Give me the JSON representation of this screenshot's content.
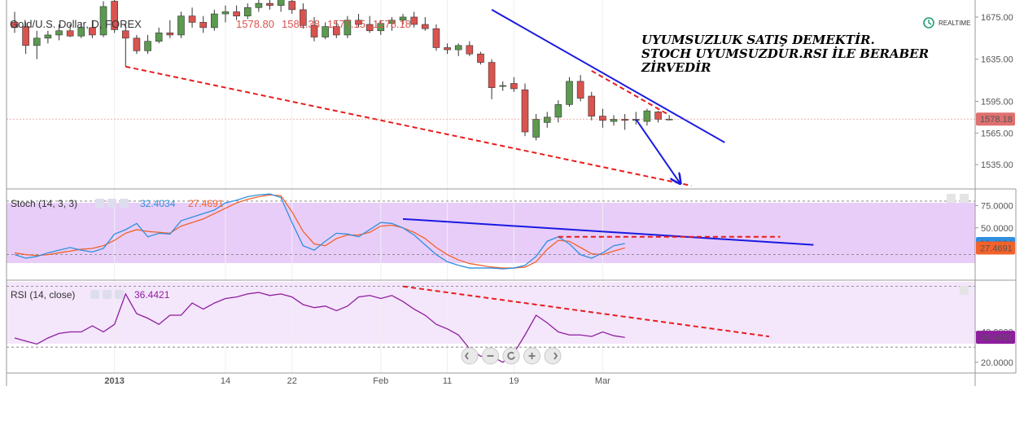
{
  "header": {
    "symbol": "Gold/U.S. Dollar, D, FOREX",
    "ohlc_text": [
      "1578.80",
      "1582.38",
      "1577.15",
      "1578.18"
    ],
    "realtime_label": "REALTIME",
    "realtime_icon": "clock-icon"
  },
  "annotation": {
    "lines": [
      "UYUMSUZLUK SATIŞ DEMEKTİR.",
      "STOCH UYUMSUZDUR.RSI İLE BERABER",
      "ZİRVEDİR"
    ]
  },
  "colors": {
    "up": "#5b9a4f",
    "down": "#d9534f",
    "stoch_k": "#2f8fe0",
    "stoch_d": "#f2622a",
    "rsi": "#8e1e9e",
    "trend_blue": "#1a1ae0",
    "trend_red": "#e81c1c",
    "stoch_band": "#e8cdf8",
    "rsi_band": "#f4e6fb"
  },
  "chart_data": [
    {
      "type": "candlestick",
      "name": "price",
      "title": "Gold/U.S. Dollar, D, FOREX",
      "ylim": [
        1515,
        1685
      ],
      "yticks": [
        "1675.00",
        "1635.00",
        "1595.00",
        "1565.00",
        "1535.00"
      ],
      "last_value": "1578.18",
      "x_labels": [
        {
          "i": 9,
          "label": "2013"
        },
        {
          "i": 19,
          "label": "14"
        },
        {
          "i": 25,
          "label": "22"
        },
        {
          "i": 33,
          "label": "Feb"
        },
        {
          "i": 39,
          "label": "11"
        },
        {
          "i": 45,
          "label": "19"
        },
        {
          "i": 53,
          "label": "Mar"
        }
      ],
      "candles": [
        {
          "o": 1670,
          "h": 1680,
          "l": 1660,
          "c": 1665
        },
        {
          "o": 1666,
          "h": 1670,
          "l": 1640,
          "c": 1648
        },
        {
          "o": 1648,
          "h": 1662,
          "l": 1635,
          "c": 1655
        },
        {
          "o": 1655,
          "h": 1662,
          "l": 1650,
          "c": 1658
        },
        {
          "o": 1658,
          "h": 1668,
          "l": 1653,
          "c": 1662
        },
        {
          "o": 1662,
          "h": 1668,
          "l": 1656,
          "c": 1657
        },
        {
          "o": 1657,
          "h": 1670,
          "l": 1655,
          "c": 1665
        },
        {
          "o": 1665,
          "h": 1672,
          "l": 1655,
          "c": 1658
        },
        {
          "o": 1658,
          "h": 1690,
          "l": 1656,
          "c": 1685
        },
        {
          "o": 1690,
          "h": 1693,
          "l": 1660,
          "c": 1663
        },
        {
          "o": 1662,
          "h": 1668,
          "l": 1628,
          "c": 1655
        },
        {
          "o": 1655,
          "h": 1658,
          "l": 1640,
          "c": 1643
        },
        {
          "o": 1643,
          "h": 1658,
          "l": 1640,
          "c": 1652
        },
        {
          "o": 1652,
          "h": 1665,
          "l": 1650,
          "c": 1660
        },
        {
          "o": 1660,
          "h": 1672,
          "l": 1655,
          "c": 1658
        },
        {
          "o": 1658,
          "h": 1680,
          "l": 1655,
          "c": 1676
        },
        {
          "o": 1676,
          "h": 1684,
          "l": 1665,
          "c": 1670
        },
        {
          "o": 1670,
          "h": 1676,
          "l": 1660,
          "c": 1665
        },
        {
          "o": 1665,
          "h": 1682,
          "l": 1662,
          "c": 1678
        },
        {
          "o": 1678,
          "h": 1686,
          "l": 1670,
          "c": 1680
        },
        {
          "o": 1680,
          "h": 1686,
          "l": 1672,
          "c": 1676
        },
        {
          "o": 1676,
          "h": 1688,
          "l": 1673,
          "c": 1684
        },
        {
          "o": 1684,
          "h": 1692,
          "l": 1680,
          "c": 1688
        },
        {
          "o": 1688,
          "h": 1694,
          "l": 1682,
          "c": 1686
        },
        {
          "o": 1686,
          "h": 1696,
          "l": 1680,
          "c": 1692
        },
        {
          "o": 1690,
          "h": 1694,
          "l": 1678,
          "c": 1682
        },
        {
          "o": 1682,
          "h": 1688,
          "l": 1664,
          "c": 1667
        },
        {
          "o": 1667,
          "h": 1675,
          "l": 1652,
          "c": 1656
        },
        {
          "o": 1656,
          "h": 1670,
          "l": 1654,
          "c": 1666
        },
        {
          "o": 1666,
          "h": 1672,
          "l": 1655,
          "c": 1658
        },
        {
          "o": 1658,
          "h": 1676,
          "l": 1655,
          "c": 1672
        },
        {
          "o": 1672,
          "h": 1678,
          "l": 1665,
          "c": 1668
        },
        {
          "o": 1668,
          "h": 1676,
          "l": 1660,
          "c": 1662
        },
        {
          "o": 1662,
          "h": 1672,
          "l": 1658,
          "c": 1669
        },
        {
          "o": 1669,
          "h": 1675,
          "l": 1662,
          "c": 1672
        },
        {
          "o": 1672,
          "h": 1678,
          "l": 1668,
          "c": 1675
        },
        {
          "o": 1675,
          "h": 1680,
          "l": 1665,
          "c": 1668
        },
        {
          "o": 1668,
          "h": 1675,
          "l": 1662,
          "c": 1664
        },
        {
          "o": 1664,
          "h": 1668,
          "l": 1643,
          "c": 1646
        },
        {
          "o": 1646,
          "h": 1650,
          "l": 1640,
          "c": 1644
        },
        {
          "o": 1644,
          "h": 1650,
          "l": 1638,
          "c": 1648
        },
        {
          "o": 1648,
          "h": 1652,
          "l": 1638,
          "c": 1640
        },
        {
          "o": 1640,
          "h": 1642,
          "l": 1630,
          "c": 1632
        },
        {
          "o": 1632,
          "h": 1635,
          "l": 1597,
          "c": 1608
        },
        {
          "o": 1610,
          "h": 1614,
          "l": 1605,
          "c": 1610
        },
        {
          "o": 1612,
          "h": 1618,
          "l": 1604,
          "c": 1607
        },
        {
          "o": 1606,
          "h": 1612,
          "l": 1562,
          "c": 1566
        },
        {
          "o": 1561,
          "h": 1583,
          "l": 1558,
          "c": 1578
        },
        {
          "o": 1575,
          "h": 1585,
          "l": 1570,
          "c": 1580
        },
        {
          "o": 1580,
          "h": 1596,
          "l": 1575,
          "c": 1592
        },
        {
          "o": 1592,
          "h": 1618,
          "l": 1590,
          "c": 1614
        },
        {
          "o": 1614,
          "h": 1620,
          "l": 1595,
          "c": 1598
        },
        {
          "o": 1600,
          "h": 1604,
          "l": 1577,
          "c": 1581
        },
        {
          "o": 1581,
          "h": 1588,
          "l": 1570,
          "c": 1577
        },
        {
          "o": 1576,
          "h": 1582,
          "l": 1572,
          "c": 1578
        },
        {
          "o": 1578,
          "h": 1583,
          "l": 1568,
          "c": 1577
        },
        {
          "o": 1577,
          "h": 1585,
          "l": 1573,
          "c": 1578
        },
        {
          "o": 1576,
          "h": 1588,
          "l": 1572,
          "c": 1586
        },
        {
          "o": 1585,
          "h": 1586,
          "l": 1575,
          "c": 1578
        },
        {
          "o": 1578,
          "h": 1582,
          "l": 1577,
          "c": 1578.18
        }
      ],
      "trendlines": [
        {
          "color": "blue",
          "dash": false,
          "from": {
            "i": 43,
            "v": 1682
          },
          "to": {
            "i": 64,
            "v": 1556
          }
        },
        {
          "color": "red",
          "dash": true,
          "from": {
            "i": 10,
            "v": 1628
          },
          "to": {
            "i": 61,
            "v": 1515
          }
        },
        {
          "color": "red",
          "dash": true,
          "from": {
            "i": 52,
            "v": 1624
          },
          "to": {
            "i": 59,
            "v": 1582
          }
        },
        {
          "color": "blue",
          "dash": false,
          "arrow": true,
          "from": {
            "i": 56,
            "v": 1578
          },
          "to": {
            "i": 60,
            "v": 1517
          }
        }
      ]
    },
    {
      "type": "line",
      "name": "stoch",
      "title": "Stoch (14, 3, 3)",
      "ylim": [
        -5,
        90
      ],
      "yticks": [
        "75.0000",
        "50.0000"
      ],
      "bands": [
        20,
        80
      ],
      "k_value": "32.4034",
      "d_value": "27.4691",
      "series": [
        {
          "name": "32.4034",
          "values": [
            20,
            16,
            18,
            22,
            25,
            28,
            25,
            23,
            27,
            43,
            48,
            55,
            40,
            44,
            43,
            58,
            62,
            66,
            70,
            78,
            81,
            85,
            87,
            88,
            84,
            56,
            30,
            25,
            35,
            44,
            43,
            40,
            48,
            56,
            55,
            50,
            42,
            31,
            20,
            12,
            8,
            5,
            5,
            5,
            4,
            5,
            8,
            18,
            35,
            40,
            32,
            20,
            16,
            22,
            30,
            32.4
          ]
        },
        {
          "name": "27.4691",
          "values": [
            22,
            20,
            19,
            20,
            22,
            24,
            26,
            27,
            30,
            36,
            44,
            48,
            46,
            45,
            44,
            52,
            56,
            60,
            66,
            72,
            78,
            82,
            85,
            87,
            86,
            68,
            46,
            32,
            30,
            38,
            42,
            42,
            45,
            52,
            53,
            50,
            45,
            38,
            28,
            20,
            14,
            10,
            8,
            6,
            5,
            5,
            6,
            12,
            26,
            36,
            35,
            28,
            21,
            20,
            24,
            27.5
          ]
        }
      ],
      "trendlines": [
        {
          "color": "blue",
          "dash": false,
          "from": {
            "i": 35,
            "v": 60
          },
          "to": {
            "i": 72,
            "v": 31
          }
        },
        {
          "color": "red",
          "dash": true,
          "from": {
            "i": 49,
            "v": 40
          },
          "to": {
            "i": 69,
            "v": 40
          }
        }
      ]
    },
    {
      "type": "line",
      "name": "rsi",
      "title": "RSI (14, close)",
      "value": "36.4421",
      "ylim": [
        14,
        73
      ],
      "yticks": [
        "40.0000",
        "20.0000"
      ],
      "bands": [
        30,
        70
      ],
      "series": [
        {
          "name": "36.4421",
          "values": [
            36,
            34,
            32,
            36,
            39,
            40,
            40,
            44,
            40,
            45,
            65,
            52,
            49,
            45,
            51,
            51,
            59,
            55,
            59,
            62,
            63,
            65,
            66,
            64,
            65,
            63,
            58,
            56,
            57,
            54,
            57,
            63,
            64,
            62,
            64,
            60,
            55,
            51,
            45,
            42,
            38,
            29,
            24,
            24,
            20,
            26,
            38,
            51,
            46,
            40,
            38,
            38,
            37,
            40,
            37.5,
            36.4
          ]
        }
      ],
      "trendlines": [
        {
          "color": "red",
          "dash": true,
          "from": {
            "i": 35,
            "v": 70
          },
          "to": {
            "i": 68,
            "v": 37
          }
        }
      ]
    }
  ],
  "nav": {
    "buttons": [
      "scroll-left-icon",
      "zoom-out-icon",
      "reset-icon",
      "zoom-in-icon",
      "scroll-right-icon"
    ]
  }
}
